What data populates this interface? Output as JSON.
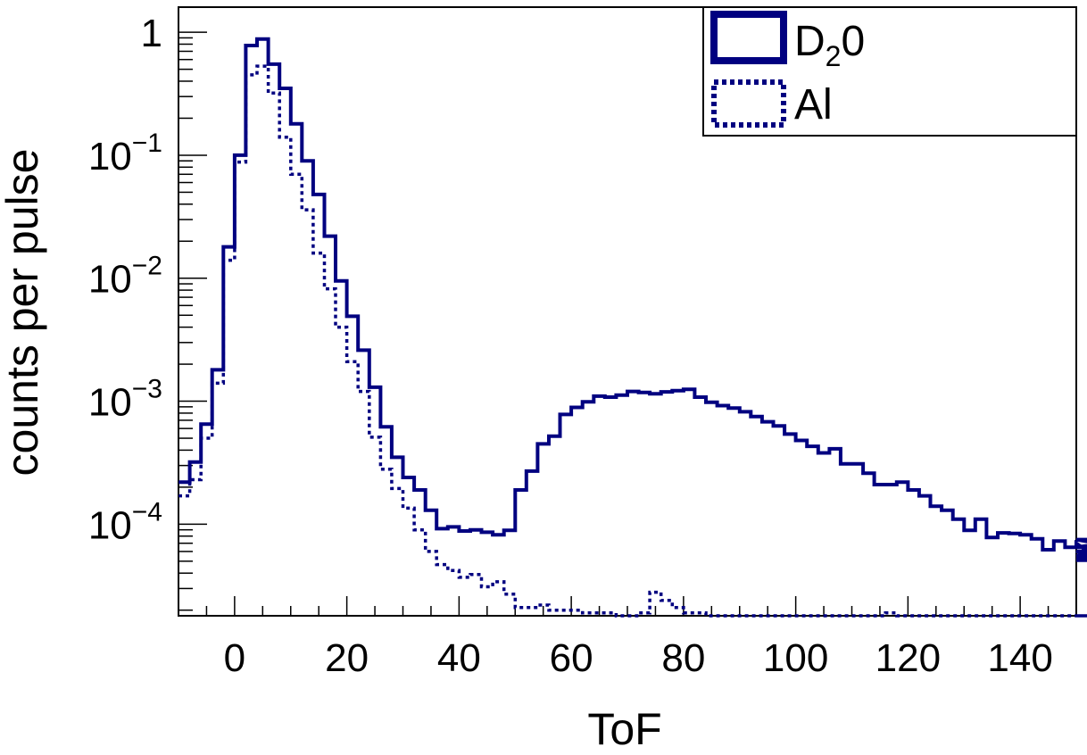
{
  "chart_data": {
    "type": "line",
    "style": "step-histogram",
    "xlabel": "ToF",
    "ylabel": "counts per pulse",
    "xlim": [
      -10,
      150
    ],
    "ylim": [
      1.8e-05,
      1.6
    ],
    "yscale": "log",
    "grid": false,
    "legend_position": "top-right",
    "x_ticks": [
      "0",
      "20",
      "40",
      "60",
      "80",
      "100",
      "120",
      "140"
    ],
    "y_ticks": [
      {
        "base": "1",
        "exp": ""
      },
      {
        "base": "10",
        "exp": "−1"
      },
      {
        "base": "10",
        "exp": "−2"
      },
      {
        "base": "10",
        "exp": "−3"
      },
      {
        "base": "10",
        "exp": "−4"
      }
    ],
    "bin_width": 2,
    "bin_start": -10,
    "series": [
      {
        "name": "D₂0",
        "line_style": "solid",
        "color": "#000080",
        "values": [
          0.00022,
          0.00032,
          0.00065,
          0.0018,
          0.018,
          0.1,
          0.78,
          0.88,
          0.55,
          0.35,
          0.18,
          0.09,
          0.048,
          0.022,
          0.0095,
          0.0049,
          0.0026,
          0.0013,
          0.00062,
          0.00035,
          0.00024,
          0.00019,
          0.00013,
          9.2e-05,
          9.5e-05,
          8.8e-05,
          9e-05,
          8.6e-05,
          8.2e-05,
          8.9e-05,
          0.00019,
          0.00027,
          0.00045,
          0.00052,
          0.00078,
          0.00089,
          0.00099,
          0.0011,
          0.00108,
          0.00112,
          0.0012,
          0.00118,
          0.00115,
          0.00119,
          0.00122,
          0.00125,
          0.00108,
          0.00098,
          0.00092,
          0.00088,
          0.00082,
          0.00075,
          0.00068,
          0.00063,
          0.00054,
          0.00048,
          0.00043,
          0.00038,
          0.00041,
          0.00031,
          0.00031,
          0.00026,
          0.00021,
          0.00021,
          0.00022,
          0.00019,
          0.00017,
          0.00014,
          0.00013,
          0.00011,
          8.9e-05,
          0.00011,
          7.8e-05,
          8.5e-05,
          8.4e-05,
          8.2e-05,
          7.6e-05,
          6.2e-05,
          7.3e-05,
          6.5e-05,
          7e-05,
          6e-05,
          5.1e-05,
          5.5e-05,
          6.5e-05,
          7.5e-05,
          6e-05,
          5.4e-05
        ]
      },
      {
        "name": "Al",
        "line_style": "dotted",
        "color": "#000080",
        "values": [
          0.00017,
          0.00023,
          0.0005,
          0.0014,
          0.014,
          0.088,
          0.45,
          0.53,
          0.32,
          0.14,
          0.07,
          0.036,
          0.016,
          0.0082,
          0.004,
          0.0021,
          0.0012,
          0.00051,
          0.00028,
          0.000195,
          0.000135,
          9e-05,
          6e-05,
          4.7e-05,
          4.2e-05,
          3.7e-05,
          3.9e-05,
          3.1e-05,
          3.4e-05,
          2.7e-05,
          2.1e-05,
          2.1e-05,
          2.2e-05,
          2e-05,
          2e-05,
          2e-05,
          1.9e-05,
          1.9e-05,
          1.9e-05,
          1.8e-05,
          1.8e-05,
          1.9e-05,
          2.8e-05,
          2.4e-05,
          2.1e-05,
          1.9e-05,
          1.9e-05,
          1.8e-05,
          1.8e-05,
          1.8e-05,
          1.8e-05,
          1.8e-05,
          1.8e-05,
          1.8e-05,
          1.8e-05,
          1.8e-05,
          1.8e-05,
          1.8e-05,
          1.8e-05,
          1.8e-05,
          1.8e-05,
          1.8e-05,
          1.8e-05,
          1.9e-05,
          1.8e-05,
          1.8e-05,
          1.8e-05,
          1.8e-05,
          1.8e-05,
          1.8e-05,
          1.8e-05,
          1.8e-05,
          1.8e-05,
          1.8e-05,
          1.8e-05,
          1.8e-05,
          1.8e-05,
          1.8e-05,
          1.8e-05,
          1.8e-05,
          1.8e-05,
          1.8e-05,
          1.8e-05,
          1.8e-05,
          1.8e-05,
          1.8e-05,
          1.8e-05,
          1.8e-05
        ]
      }
    ]
  }
}
